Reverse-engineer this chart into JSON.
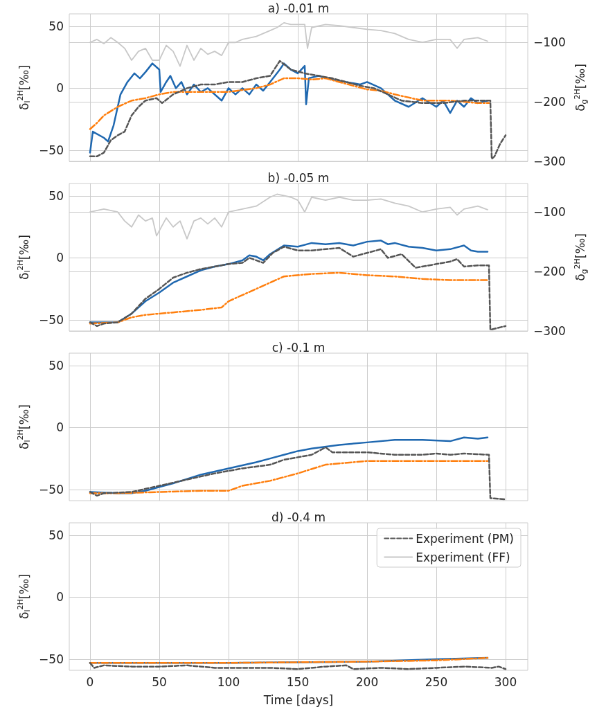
{
  "chart_data": [
    {
      "type": "line",
      "title": "a) -0.01 m",
      "ylabel": "δ$_{l}$$^{2H}$[‰]",
      "y2label": "δ$_{g}$$^{2H}$[‰]",
      "xlim": [
        -15,
        316
      ],
      "xticks": [
        0,
        50,
        100,
        150,
        200,
        250,
        300
      ],
      "ylim": [
        -59,
        60
      ],
      "yticks": [
        -50,
        0,
        50
      ],
      "y2lim": [
        -300,
        -52
      ],
      "y2ticks": [
        -300,
        -200,
        -100
      ],
      "grid": true,
      "legend": false,
      "tick_labels": "y",
      "marker": "none",
      "series": [
        {
          "color": "#1f68b0",
          "line_style": "solid",
          "x": [
            0,
            2,
            10,
            13,
            17,
            22,
            27,
            32,
            36,
            40,
            45,
            50,
            51,
            55,
            58,
            62,
            66,
            70,
            75,
            80,
            85,
            95,
            100,
            105,
            110,
            115,
            120,
            125,
            130,
            137,
            140,
            145,
            150,
            155,
            156,
            158,
            165,
            175,
            185,
            195,
            200,
            210,
            215,
            220,
            230,
            240,
            250,
            255,
            260,
            265,
            270,
            275,
            280,
            287
          ],
          "values": [
            -52,
            -35,
            -40,
            -43,
            -30,
            -5,
            5,
            12,
            8,
            13,
            20,
            15,
            -3,
            5,
            10,
            0,
            5,
            -5,
            3,
            -3,
            0,
            -10,
            0,
            -5,
            0,
            -5,
            3,
            -2,
            5,
            15,
            20,
            15,
            12,
            18,
            -13,
            8,
            10,
            7,
            5,
            3,
            5,
            0,
            -5,
            -10,
            -15,
            -8,
            -15,
            -10,
            -20,
            -10,
            -15,
            -8,
            -12,
            -10
          ]
        },
        {
          "color": "#ff7f0e",
          "line_style": "dashdot",
          "x": [
            0,
            5,
            10,
            20,
            30,
            40,
            50,
            60,
            80,
            100,
            120,
            130,
            140,
            150,
            160,
            170,
            180,
            190,
            200,
            210,
            220,
            240,
            260,
            280,
            288
          ],
          "values": [
            -33,
            -28,
            -22,
            -15,
            -10,
            -8,
            -5,
            -3,
            -3,
            -3,
            0,
            3,
            8,
            8,
            7,
            8,
            5,
            2,
            -1,
            -2,
            -5,
            -10,
            -10,
            -12,
            -12
          ]
        },
        {
          "color": "#555555",
          "line_style": "dashed",
          "x": [
            0,
            5,
            10,
            15,
            20,
            25,
            30,
            35,
            40,
            48,
            52,
            60,
            70,
            80,
            90,
            100,
            110,
            120,
            130,
            137,
            145,
            155,
            165,
            175,
            185,
            195,
            205,
            215,
            225,
            240,
            255,
            270,
            285,
            289,
            290,
            292,
            296,
            300
          ],
          "values": [
            -55,
            -55,
            -52,
            -42,
            -38,
            -35,
            -22,
            -15,
            -10,
            -8,
            -12,
            -5,
            0,
            3,
            3,
            5,
            5,
            8,
            10,
            22,
            15,
            12,
            10,
            8,
            5,
            2,
            0,
            -5,
            -10,
            -12,
            -12,
            -10,
            -10,
            -10,
            -57,
            -55,
            -45,
            -38
          ]
        },
        {
          "color": "#c8c8c8",
          "line_style": "solid",
          "axis": "y2",
          "x": [
            0,
            5,
            10,
            15,
            20,
            25,
            30,
            35,
            40,
            45,
            50,
            55,
            60,
            65,
            70,
            75,
            80,
            85,
            90,
            95,
            100,
            105,
            110,
            120,
            130,
            135,
            140,
            145,
            150,
            155,
            157,
            160,
            170,
            180,
            190,
            200,
            210,
            220,
            230,
            240,
            250,
            260,
            265,
            270,
            280,
            287
          ],
          "values": [
            -100,
            -95,
            -102,
            -92,
            -100,
            -110,
            -130,
            -115,
            -110,
            -130,
            -130,
            -105,
            -115,
            -140,
            -105,
            -130,
            -110,
            -120,
            -115,
            -122,
            -100,
            -100,
            -95,
            -90,
            -80,
            -75,
            -67,
            -70,
            -70,
            -70,
            -110,
            -75,
            -70,
            -72,
            -75,
            -78,
            -80,
            -85,
            -95,
            -100,
            -95,
            -95,
            -110,
            -95,
            -92,
            -98
          ]
        }
      ]
    },
    {
      "type": "line",
      "title": "b) -0.05 m",
      "ylabel": "δ$_{l}$$^{2H}$[‰]",
      "y2label": "δ$_{g}$$^{2H}$[‰]",
      "xlim": [
        -15,
        316
      ],
      "xticks": [
        0,
        50,
        100,
        150,
        200,
        250,
        300
      ],
      "ylim": [
        -59,
        60
      ],
      "yticks": [
        -50,
        0,
        50
      ],
      "y2lim": [
        -300,
        -52
      ],
      "y2ticks": [
        -300,
        -200,
        -100
      ],
      "grid": true,
      "legend": false,
      "tick_labels": "y",
      "marker": "none",
      "series": [
        {
          "color": "#1f68b0",
          "line_style": "solid",
          "x": [
            0,
            10,
            20,
            30,
            40,
            50,
            60,
            70,
            80,
            90,
            100,
            110,
            115,
            120,
            125,
            130,
            140,
            150,
            160,
            170,
            180,
            190,
            200,
            210,
            215,
            220,
            230,
            240,
            250,
            260,
            270,
            275,
            280,
            287
          ],
          "values": [
            -52,
            -52,
            -52,
            -45,
            -35,
            -28,
            -20,
            -15,
            -10,
            -7,
            -5,
            -2,
            2,
            1,
            -2,
            3,
            10,
            9,
            12,
            11,
            12,
            10,
            13,
            14,
            11,
            12,
            9,
            8,
            6,
            7,
            10,
            6,
            5,
            5
          ]
        },
        {
          "color": "#ff7f0e",
          "line_style": "dashdot",
          "x": [
            0,
            20,
            30,
            40,
            60,
            80,
            95,
            100,
            110,
            120,
            130,
            140,
            160,
            180,
            200,
            220,
            240,
            260,
            287
          ],
          "values": [
            -53,
            -52,
            -48,
            -46,
            -44,
            -42,
            -40,
            -35,
            -30,
            -25,
            -20,
            -15,
            -13,
            -12,
            -14,
            -15,
            -17,
            -18,
            -18
          ]
        },
        {
          "color": "#555555",
          "line_style": "dashed",
          "x": [
            0,
            5,
            10,
            20,
            30,
            40,
            50,
            60,
            70,
            80,
            90,
            100,
            110,
            115,
            125,
            132,
            140,
            150,
            160,
            170,
            180,
            190,
            200,
            210,
            215,
            225,
            235,
            250,
            260,
            265,
            270,
            280,
            288,
            289,
            300
          ],
          "values": [
            -52,
            -55,
            -53,
            -52,
            -45,
            -33,
            -25,
            -16,
            -12,
            -9,
            -7,
            -5,
            -4,
            0,
            -4,
            4,
            9,
            6,
            6,
            7,
            8,
            1,
            4,
            7,
            0,
            3,
            -8,
            -5,
            -3,
            -1,
            -7,
            -6,
            -6,
            -58,
            -55
          ]
        },
        {
          "color": "#c8c8c8",
          "line_style": "solid",
          "axis": "y2",
          "x": [
            0,
            10,
            20,
            25,
            30,
            35,
            40,
            45,
            48,
            55,
            60,
            65,
            70,
            75,
            80,
            85,
            90,
            95,
            100,
            110,
            120,
            130,
            135,
            145,
            150,
            155,
            160,
            170,
            180,
            190,
            200,
            210,
            220,
            230,
            240,
            250,
            260,
            265,
            270,
            280,
            287
          ],
          "values": [
            -100,
            -95,
            -100,
            -115,
            -125,
            -105,
            -115,
            -110,
            -140,
            -110,
            -125,
            -115,
            -145,
            -115,
            -110,
            -120,
            -110,
            -125,
            -100,
            -95,
            -90,
            -75,
            -70,
            -75,
            -80,
            -100,
            -75,
            -80,
            -75,
            -80,
            -80,
            -78,
            -85,
            -90,
            -100,
            -95,
            -92,
            -105,
            -95,
            -90,
            -96
          ]
        }
      ]
    },
    {
      "type": "line",
      "title": "c) -0.1 m",
      "ylabel": "δ$_{l}$$^{2H}$[‰]",
      "xlim": [
        -15,
        316
      ],
      "xticks": [
        0,
        50,
        100,
        150,
        200,
        250,
        300
      ],
      "ylim": [
        -59,
        60
      ],
      "yticks": [
        -50,
        0,
        50
      ],
      "grid": true,
      "legend": false,
      "tick_labels": "y",
      "marker": "none",
      "series": [
        {
          "color": "#1f68b0",
          "line_style": "solid",
          "x": [
            0,
            20,
            30,
            40,
            50,
            60,
            80,
            100,
            120,
            130,
            140,
            150,
            160,
            180,
            200,
            220,
            240,
            260,
            270,
            280,
            287
          ],
          "values": [
            -52,
            -53,
            -53,
            -51,
            -48,
            -45,
            -38,
            -33,
            -28,
            -25,
            -22,
            -19,
            -17,
            -14,
            -12,
            -10,
            -10,
            -11,
            -8,
            -9,
            -8
          ]
        },
        {
          "color": "#ff7f0e",
          "line_style": "dashdot",
          "x": [
            0,
            20,
            50,
            80,
            100,
            110,
            130,
            150,
            170,
            180,
            200,
            220,
            240,
            260,
            287
          ],
          "values": [
            -53,
            -53,
            -52,
            -51,
            -51,
            -47,
            -43,
            -37,
            -30,
            -29,
            -27,
            -27,
            -27,
            -27,
            -27
          ]
        },
        {
          "color": "#555555",
          "line_style": "dashed",
          "x": [
            0,
            5,
            10,
            30,
            50,
            70,
            90,
            110,
            130,
            140,
            160,
            170,
            175,
            190,
            200,
            220,
            240,
            250,
            260,
            270,
            288,
            289,
            300
          ],
          "values": [
            -52,
            -55,
            -53,
            -52,
            -47,
            -42,
            -37,
            -33,
            -30,
            -26,
            -22,
            -16,
            -20,
            -20,
            -20,
            -22,
            -22,
            -21,
            -22,
            -21,
            -22,
            -57,
            -58
          ]
        }
      ]
    },
    {
      "type": "line",
      "title": "d) -0.4 m",
      "ylabel": "δ$_{l}$$^{2H}$[‰]",
      "xlabel": "Time [days]",
      "xlim": [
        -15,
        316
      ],
      "xticks": [
        0,
        50,
        100,
        150,
        200,
        250,
        300
      ],
      "ylim": [
        -59,
        60
      ],
      "yticks": [
        -50,
        0,
        50
      ],
      "grid": true,
      "legend": "top right",
      "marker": "none",
      "series": [
        {
          "color": "#1f68b0",
          "line_style": "solid",
          "x": [
            0,
            100,
            200,
            250,
            287
          ],
          "values": [
            -53,
            -53,
            -52,
            -50,
            -49
          ]
        },
        {
          "color": "#ff7f0e",
          "line_style": "dashdot",
          "x": [
            0,
            100,
            200,
            250,
            287
          ],
          "values": [
            -53,
            -53,
            -52,
            -51,
            -49
          ]
        },
        {
          "name": "Experiment (PM)",
          "color": "#555555",
          "line_style": "dashed",
          "x": [
            0,
            3,
            10,
            30,
            50,
            70,
            90,
            110,
            130,
            150,
            170,
            185,
            190,
            210,
            230,
            250,
            270,
            290,
            295,
            300
          ],
          "values": [
            -53,
            -57,
            -55,
            -56,
            -56,
            -55,
            -57,
            -57,
            -57,
            -58,
            -56,
            -55,
            -58,
            -57,
            -58,
            -57,
            -56,
            -57,
            -56,
            -58
          ]
        },
        {
          "name": "Experiment (FF)",
          "color": "#c8c8c8",
          "line_style": "solid"
        }
      ]
    }
  ]
}
